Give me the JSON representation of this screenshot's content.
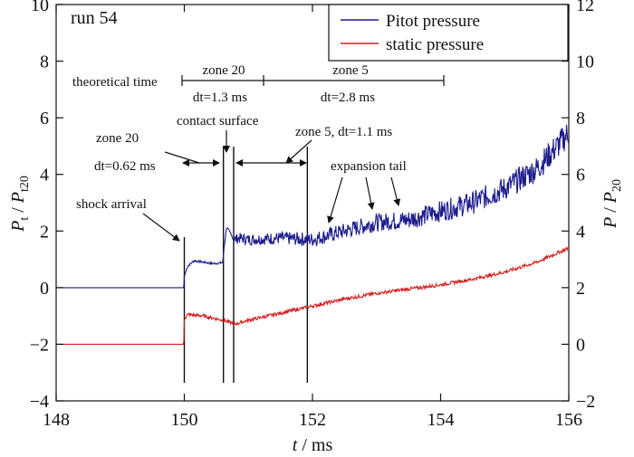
{
  "chart_data": {
    "type": "line",
    "title": "",
    "xlabel": "t / ms",
    "ylabel_left": "Pt / Pt20",
    "ylabel_right": "P / P20",
    "xlim": [
      148,
      156
    ],
    "ylim_left": [
      -4,
      10
    ],
    "ylim_right": [
      -2,
      12
    ],
    "x_ticks": [
      148,
      150,
      152,
      154,
      156
    ],
    "y_ticks_left": [
      -4,
      -2,
      0,
      2,
      4,
      6,
      8,
      10
    ],
    "y_ticks_right": [
      -2,
      0,
      2,
      4,
      6,
      8,
      10,
      12
    ],
    "grid": false,
    "legend_position": "top-right",
    "colors": {
      "pitot": "#1c1c8c",
      "static": "#d42020",
      "axes": "#111111"
    },
    "series": [
      {
        "name": "Pitot pressure",
        "axis": "left",
        "x": [
          148.0,
          149.99,
          150.0,
          150.05,
          150.15,
          150.3,
          150.45,
          150.6,
          150.62,
          150.66,
          150.7,
          150.75,
          150.78,
          150.85,
          151.0,
          151.5,
          152.0,
          152.5,
          153.0,
          153.5,
          154.0,
          154.5,
          155.0,
          155.5,
          155.9,
          156.0
        ],
        "values": [
          0.0,
          0.0,
          0.4,
          0.75,
          0.95,
          0.9,
          0.85,
          0.88,
          1.4,
          2.15,
          2.0,
          1.8,
          1.7,
          1.75,
          1.7,
          1.75,
          1.7,
          2.0,
          2.3,
          2.4,
          2.7,
          3.0,
          3.5,
          4.2,
          5.2,
          5.5
        ]
      },
      {
        "name": "static pressure",
        "axis": "right",
        "x": [
          148.0,
          149.99,
          150.0,
          150.05,
          150.3,
          150.6,
          150.8,
          151.0,
          151.5,
          152.0,
          152.5,
          153.0,
          153.5,
          154.0,
          154.5,
          155.0,
          155.5,
          156.0
        ],
        "values": [
          0.0,
          0.0,
          0.85,
          1.05,
          1.0,
          0.85,
          0.72,
          0.85,
          1.1,
          1.35,
          1.6,
          1.8,
          1.95,
          2.1,
          2.3,
          2.55,
          2.9,
          3.4
        ]
      }
    ],
    "vertical_lines_x": [
      150.0,
      150.61,
      150.77,
      151.92
    ],
    "annotations": {
      "run": "run 54",
      "theoretical_time": "theoretical time",
      "zone20_top": "zone 20",
      "zone20_dt_top": "dt=1.3 ms",
      "zone5_top": "zone 5",
      "zone5_dt_top": "dt=2.8 ms",
      "contact_surface": "contact surface",
      "zone20_left": "zone 20",
      "zone20_dt_left": "dt=0.62 ms",
      "zone5_mid": "zone 5, dt=1.1 ms",
      "expansion_tail": "expansion tail",
      "shock_arrival": "shock arrival"
    }
  }
}
